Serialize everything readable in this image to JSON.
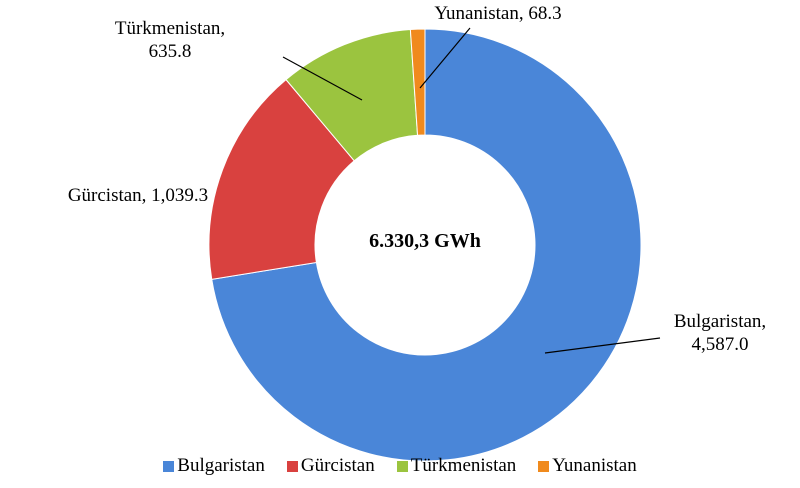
{
  "chart_data": {
    "type": "donut",
    "categories": [
      "Bulgaristan",
      "Gürcistan",
      "Türkmenistan",
      "Yunanistan"
    ],
    "values": [
      4587.0,
      1039.3,
      635.8,
      68.3
    ],
    "value_labels": [
      "Bulgaristan, 4,587.0",
      "Gürcistan, 1,039.3",
      "Türkmenistan, 635.8",
      "Yunanistan, 68.3"
    ],
    "colors": [
      "#4a86d8",
      "#d9413f",
      "#9bc43f",
      "#f08a1d"
    ],
    "center_label": "6.330,3 GWh",
    "legend": "bottom"
  }
}
